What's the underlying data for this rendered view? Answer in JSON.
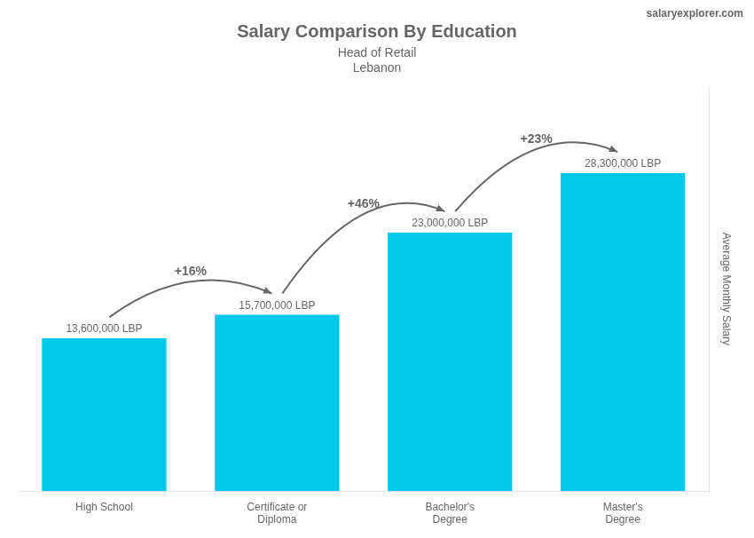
{
  "chart_data": {
    "type": "bar",
    "title": "Salary Comparison By Education",
    "subtitle": [
      "Head of Retail",
      "Lebanon"
    ],
    "ylabel": "Average Monthly Salary",
    "categories": [
      "High School",
      "Certificate or\nDiploma",
      "Bachelor's\nDegree",
      "Master's\nDegree"
    ],
    "values": [
      13600000,
      15700000,
      23000000,
      28300000
    ],
    "value_labels": [
      "13,600,000 LBP",
      "15,700,000 LBP",
      "23,000,000 LBP",
      "28,300,000 LBP"
    ],
    "data_labels": true,
    "annotations": [
      "+16%",
      "+46%",
      "+23%"
    ],
    "watermark": "salaryexplorer.com",
    "color": "#00c8e8",
    "ylim": [
      0,
      36000000
    ],
    "grid": false,
    "tick_labels": "x"
  }
}
